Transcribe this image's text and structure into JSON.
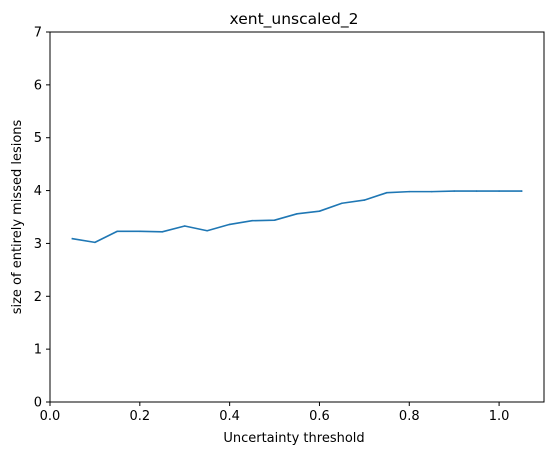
{
  "chart_data": {
    "type": "line",
    "title": "xent_unscaled_2",
    "xlabel": "Uncertainty threshold",
    "ylabel": "size of entirely missed lesions",
    "xlim": [
      0.0,
      1.1
    ],
    "ylim": [
      0,
      7
    ],
    "xticks": [
      0.0,
      0.2,
      0.4,
      0.6,
      0.8,
      1.0
    ],
    "xtick_labels": [
      "0.0",
      "0.2",
      "0.4",
      "0.6",
      "0.8",
      "1.0"
    ],
    "yticks": [
      0,
      1,
      2,
      3,
      4,
      5,
      6,
      7
    ],
    "ytick_labels": [
      "0",
      "1",
      "2",
      "3",
      "4",
      "5",
      "6",
      "7"
    ],
    "grid": false,
    "series": [
      {
        "color": "#1f77b4",
        "x": [
          0.05,
          0.1,
          0.15,
          0.2,
          0.25,
          0.3,
          0.35,
          0.4,
          0.45,
          0.5,
          0.55,
          0.6,
          0.65,
          0.7,
          0.75,
          0.8,
          0.85,
          0.9,
          0.95,
          1.0,
          1.05
        ],
        "y": [
          3.09,
          3.02,
          3.23,
          3.23,
          3.22,
          3.33,
          3.24,
          3.36,
          3.43,
          3.44,
          3.56,
          3.61,
          3.76,
          3.82,
          3.96,
          3.98,
          3.98,
          3.99,
          3.99,
          3.99,
          3.99
        ]
      }
    ]
  }
}
